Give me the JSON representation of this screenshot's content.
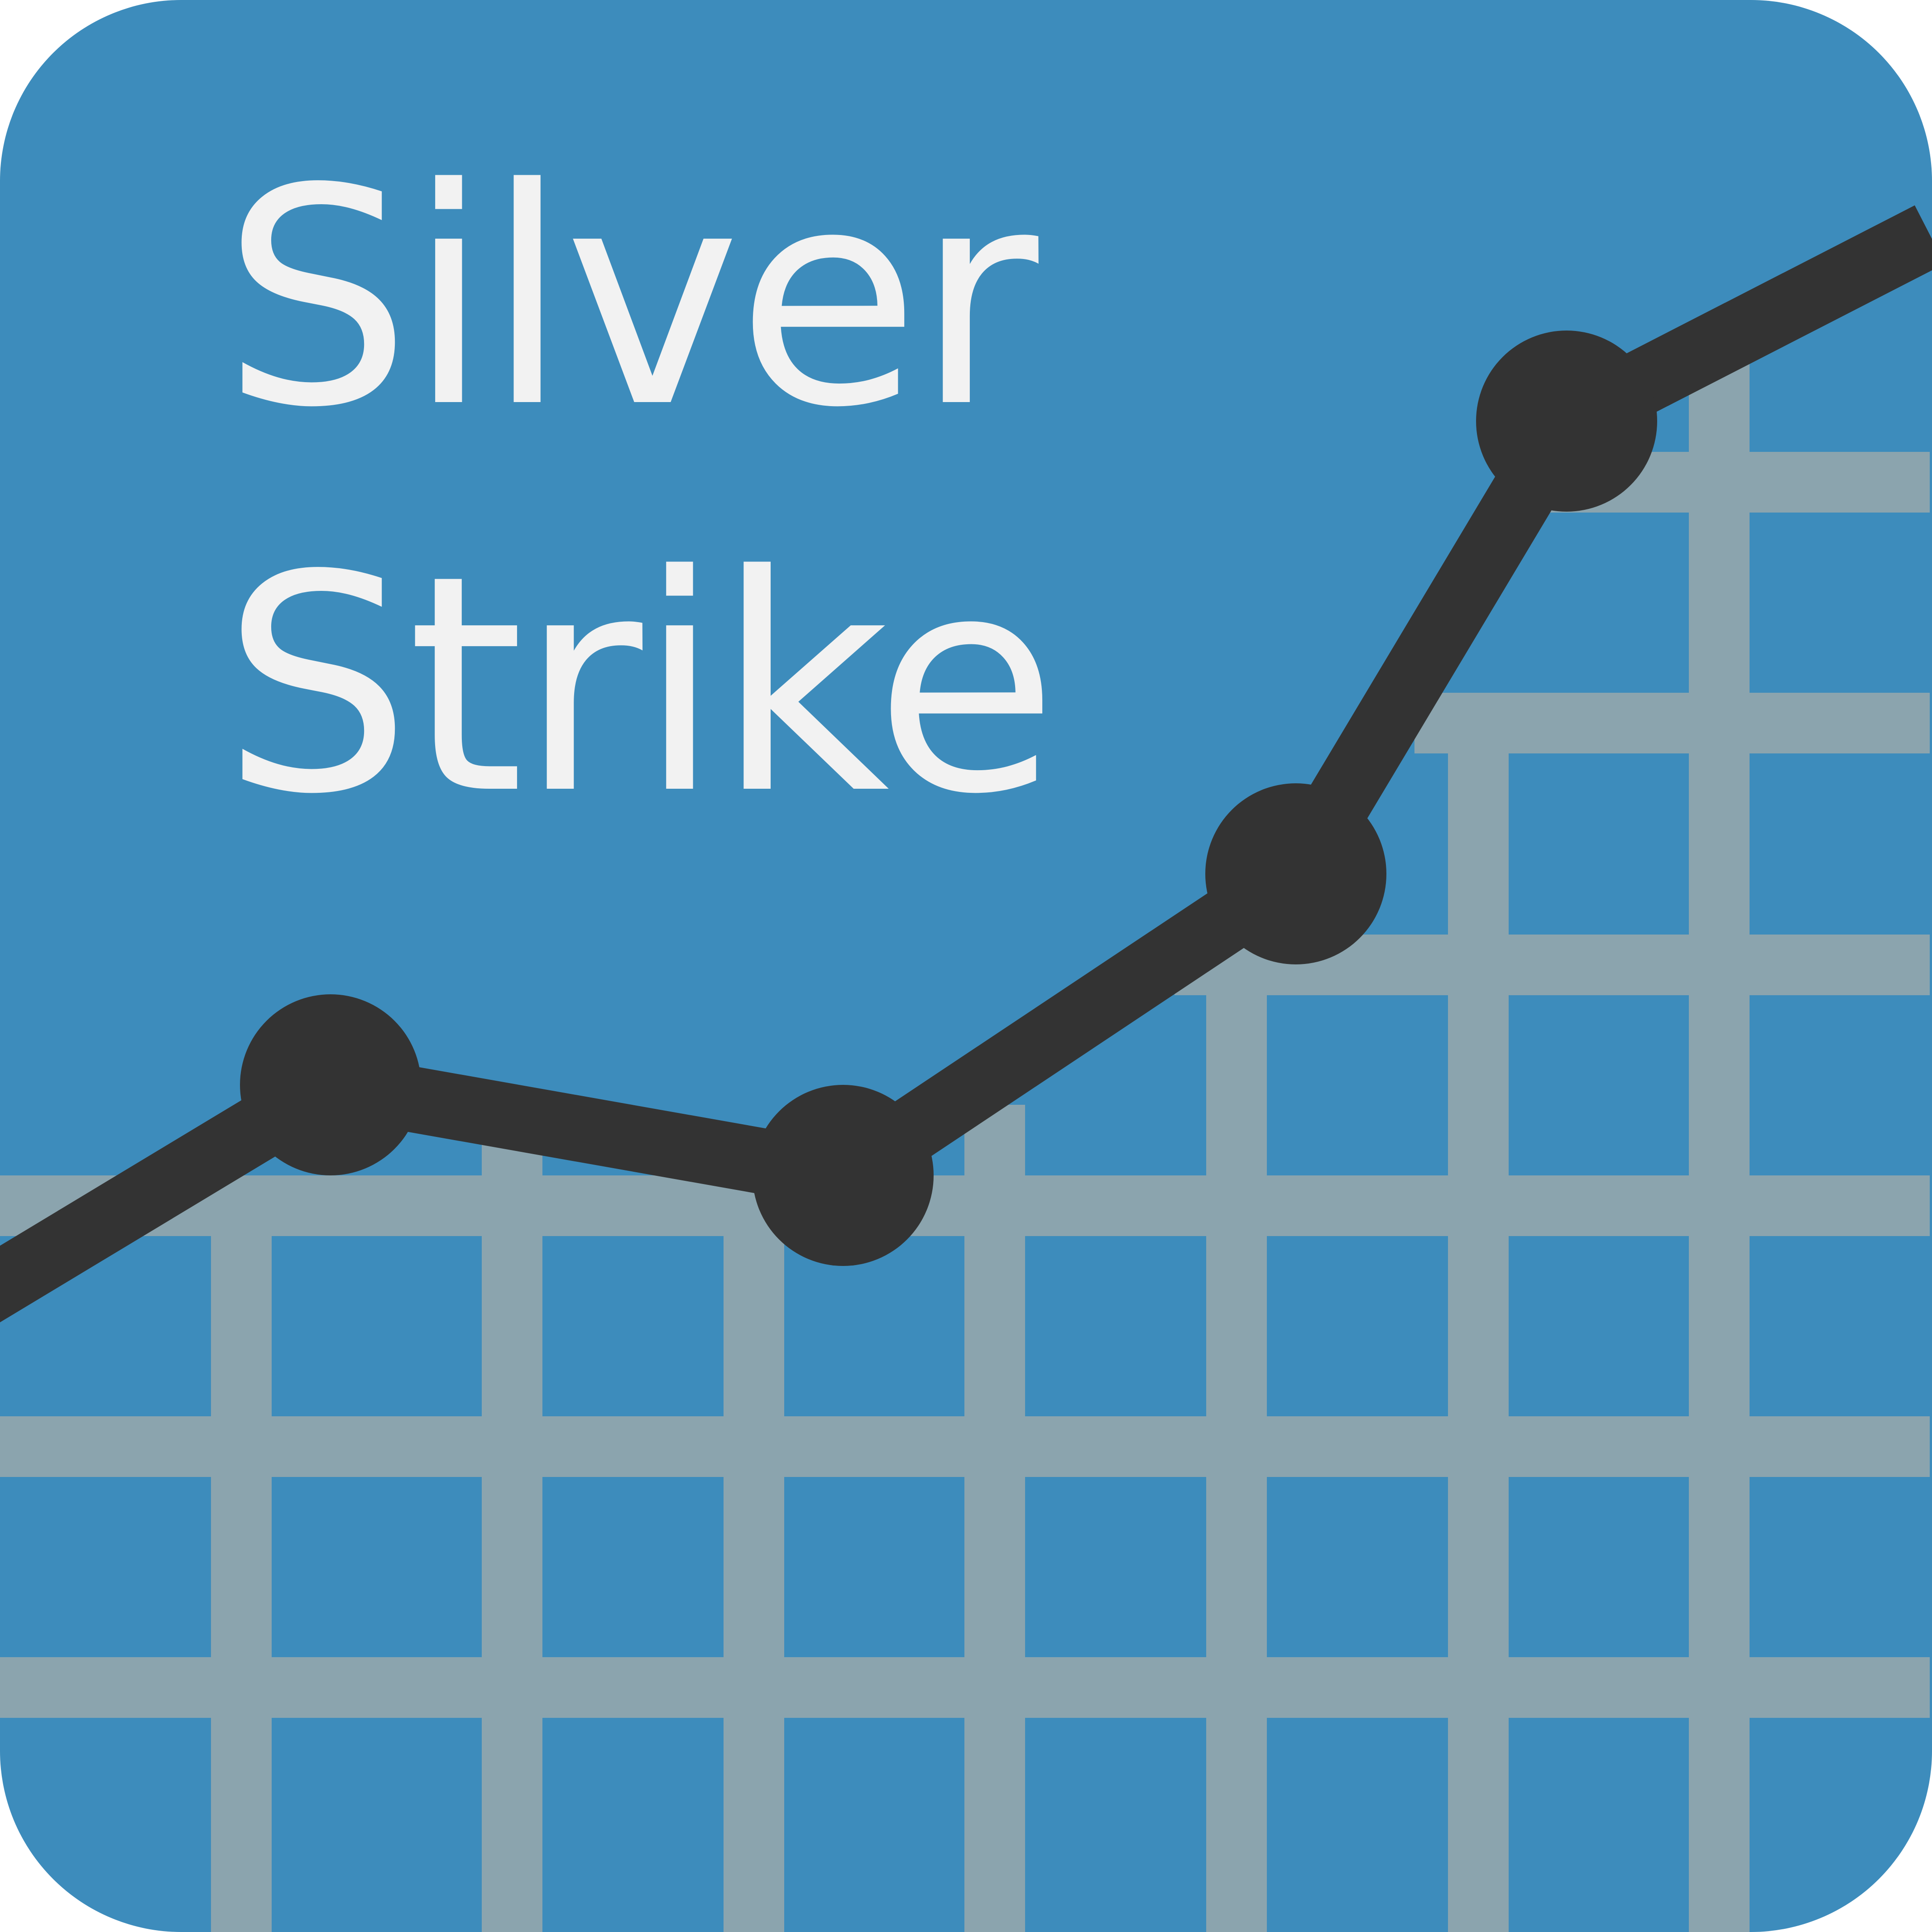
{
  "app_icon": {
    "title_line_1": "Silver",
    "title_line_2": "Strike"
  },
  "colors": {
    "background": "#3d8cbc",
    "grid": "#8ba4ae",
    "line": "#333333",
    "text": "#f2f2f2"
  },
  "icons": {
    "logo": "rising-line-graph-icon"
  }
}
